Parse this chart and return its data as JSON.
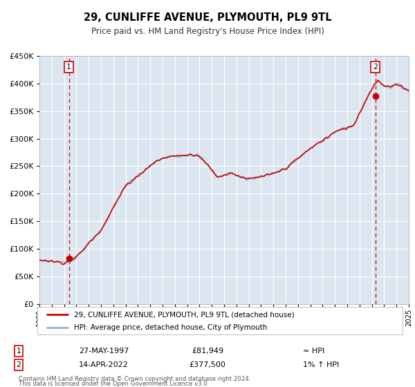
{
  "title": "29, CUNLIFFE AVENUE, PLYMOUTH, PL9 9TL",
  "subtitle": "Price paid vs. HM Land Registry's House Price Index (HPI)",
  "ylim": [
    0,
    450000
  ],
  "xlim": [
    1995,
    2025
  ],
  "yticks": [
    0,
    50000,
    100000,
    150000,
    200000,
    250000,
    300000,
    350000,
    400000,
    450000
  ],
  "hpi_color": "#8ab4d4",
  "price_color": "#cc0000",
  "marker_color": "#cc0000",
  "dashed_color": "#cc0000",
  "bg_color": "#dce6f0",
  "outer_bg": "#ffffff",
  "legend_label1": "29, CUNLIFFE AVENUE, PLYMOUTH, PL9 9TL (detached house)",
  "legend_label2": "HPI: Average price, detached house, City of Plymouth",
  "point1_x": 1997.39,
  "point1_y": 81949,
  "point2_x": 2022.28,
  "point2_y": 377500,
  "footer1": "Contains HM Land Registry data © Crown copyright and database right 2024.",
  "footer2": "This data is licensed under the Open Government Licence v3.0."
}
